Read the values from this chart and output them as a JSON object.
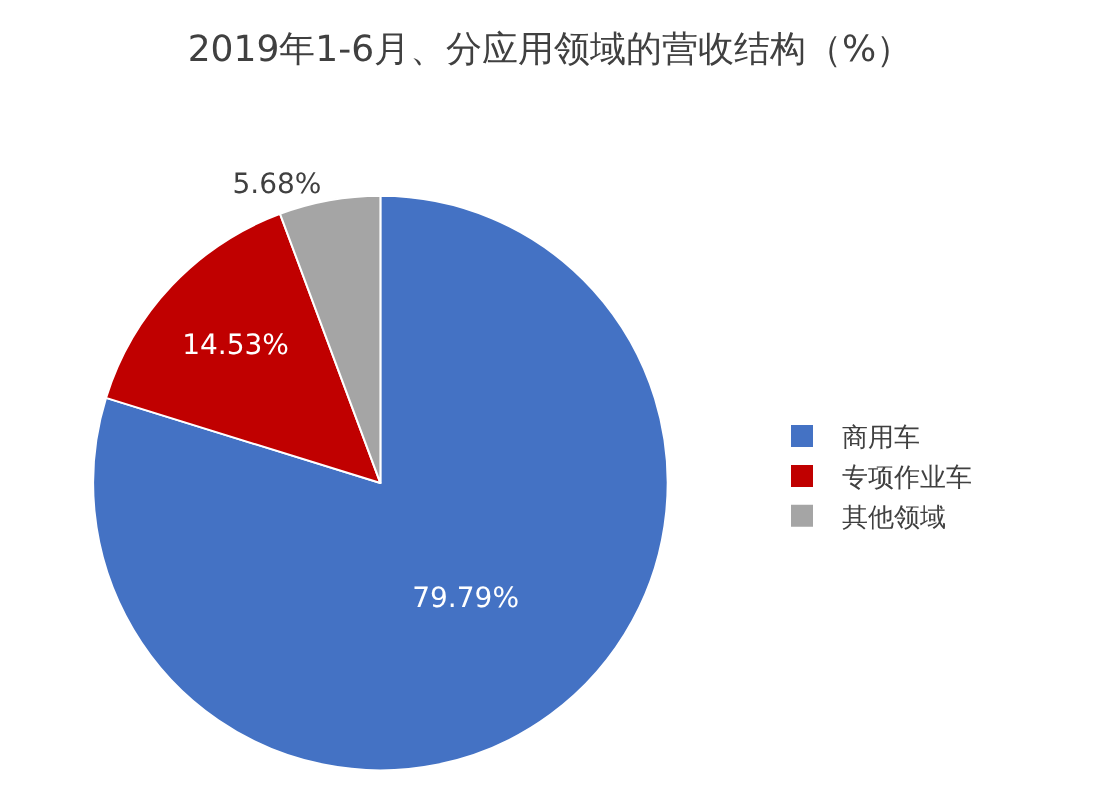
{
  "chart_data": {
    "type": "pie",
    "title": "2019年1-6月、分应用领域的营收结构（%）",
    "categories": [
      "商用车",
      "专项作业车",
      "其他领域"
    ],
    "values": [
      79.79,
      14.53,
      5.68
    ],
    "colors": [
      "#4472c4",
      "#c00000",
      "#a5a5a5"
    ],
    "value_labels": [
      "79.79%",
      "14.53%",
      "5.68%"
    ],
    "legend": "right"
  }
}
